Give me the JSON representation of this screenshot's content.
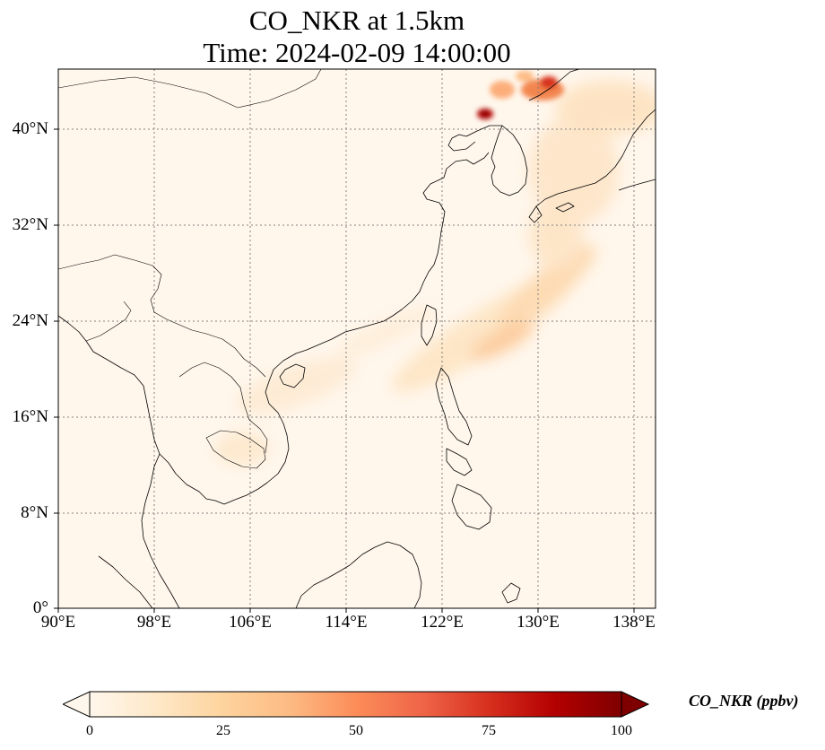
{
  "title_line1": "CO_NKR at 1.5km",
  "title_line2": "Time: 2024-02-09 14:00:00",
  "lat_ticks": [
    "0°",
    "8°N",
    "16°N",
    "24°N",
    "32°N",
    "40°N"
  ],
  "lon_ticks": [
    "90°E",
    "98°E",
    "106°E",
    "114°E",
    "122°E",
    "130°E",
    "138°E"
  ],
  "colorbar": {
    "label": "CO_NKR (ppbv)",
    "ticks": [
      "0",
      "25",
      "50",
      "75",
      "100"
    ],
    "min": 0,
    "max": 100,
    "colormap": "OrRd",
    "extend": "both"
  },
  "colors": {
    "background_low": "#fff7ec",
    "mid": "#fdbb84",
    "high": "#7f0000",
    "coastline": "#000000",
    "gridline": "#808080"
  },
  "map_extent": {
    "lon_min": 90,
    "lon_max": 139.7,
    "lat_min": 0,
    "lat_max": 45,
    "grid_lon_step": 8,
    "grid_lat_step": 8
  }
}
